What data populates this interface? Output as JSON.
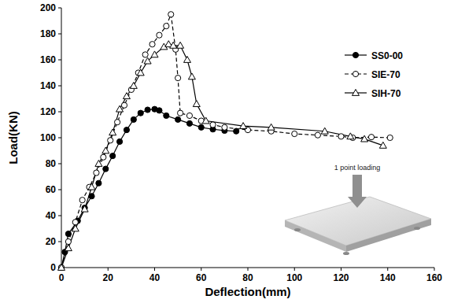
{
  "chart_data": {
    "type": "line",
    "x_label": "Deflection(mm)",
    "y_label": "Load(KN)",
    "annotation": "1 point loading",
    "xlim": [
      0,
      160
    ],
    "xticks": [
      0,
      20,
      40,
      60,
      80,
      100,
      120,
      140,
      160
    ],
    "ylim": [
      0,
      200
    ],
    "yticks": [
      0,
      20,
      40,
      60,
      80,
      100,
      120,
      140,
      160,
      180,
      200
    ],
    "grid": false,
    "legend": "upper right",
    "series": [
      {
        "name": "SS0-00",
        "color": "#000000",
        "marker": "filled-circle",
        "line_style": "solid",
        "x": [
          0,
          1.5,
          3,
          7,
          10,
          13,
          16,
          19,
          22,
          25,
          28,
          31,
          34,
          37,
          40,
          42,
          45,
          50,
          55,
          60,
          65,
          70,
          75
        ],
        "values": [
          0,
          12,
          26,
          36,
          46,
          55,
          65,
          76,
          86,
          97,
          106,
          114,
          119,
          121.5,
          122,
          121,
          117,
          114,
          111,
          108,
          106.5,
          105.5,
          105
        ]
      },
      {
        "name": "SIE-70",
        "color": "#000000",
        "marker": "open-circle",
        "line_style": "dashed",
        "x": [
          0,
          3,
          6,
          9,
          12,
          15,
          18,
          21,
          24,
          27,
          30,
          33,
          36,
          39,
          42,
          45,
          47,
          49,
          50,
          51,
          55,
          60,
          65,
          70,
          80,
          90,
          100,
          110,
          120,
          125,
          133,
          141
        ],
        "values": [
          0,
          20,
          35,
          52,
          62,
          73,
          85,
          98,
          112,
          125,
          137,
          150,
          164,
          172,
          179,
          186,
          195,
          168,
          146,
          119,
          117,
          113,
          110,
          108,
          106,
          105,
          103,
          102,
          101,
          100,
          100.5,
          100
        ]
      },
      {
        "name": "SIH-70",
        "color": "#000000",
        "marker": "open-triangle",
        "line_style": "solid",
        "x": [
          0,
          3,
          6,
          10,
          13,
          16,
          19,
          22,
          25,
          28,
          31,
          34,
          37,
          40,
          44,
          46,
          48,
          51,
          54,
          56,
          58,
          62,
          78,
          90,
          113,
          124,
          130,
          138
        ],
        "values": [
          0,
          15,
          30,
          45,
          62,
          80,
          90,
          104,
          122,
          132,
          140,
          150,
          159,
          164,
          170,
          172,
          171,
          171,
          160,
          147,
          126,
          113,
          109,
          108,
          105,
          101,
          99,
          94
        ]
      }
    ]
  }
}
